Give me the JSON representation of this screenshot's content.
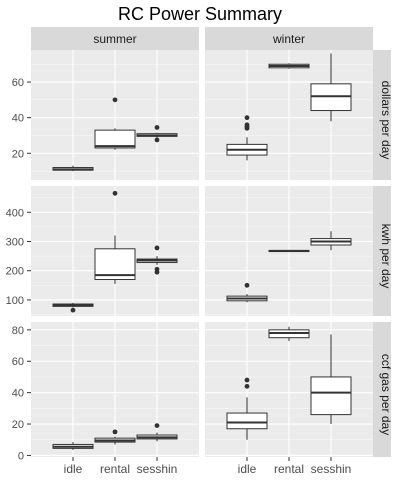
{
  "chart_data": {
    "type": "boxplot",
    "title": "RC Power Summary",
    "facet_columns": [
      "summer",
      "winter"
    ],
    "facet_rows": [
      "dollars per day",
      "kwh per day",
      "ccf gas per day"
    ],
    "categories": [
      "idle",
      "rental",
      "sesshin"
    ],
    "panel_background": "#ebebeb",
    "strip_background": "#d9d9d9",
    "grid_color": "#ffffff",
    "panels": [
      {
        "row": 0,
        "y_ticks": [
          20,
          40,
          60
        ],
        "y_range": [
          5,
          78
        ],
        "boxes": [
          [
            {
              "category": "idle",
              "min": 10,
              "q1": 10.5,
              "median": 11,
              "q3": 12,
              "max": 13,
              "outliers": []
            },
            {
              "category": "rental",
              "min": 22,
              "q1": 23,
              "median": 24,
              "q3": 33,
              "max": 34,
              "outliers": [
                50
              ]
            },
            {
              "category": "sesshin",
              "min": 28.5,
              "q1": 29.5,
              "median": 30,
              "q3": 31,
              "max": 31.5,
              "outliers": [
                27.5,
                34.5
              ]
            }
          ],
          [
            {
              "category": "idle",
              "min": 16,
              "q1": 19,
              "median": 22,
              "q3": 25,
              "max": 29,
              "outliers": [
                34,
                35,
                36,
                40
              ]
            },
            {
              "category": "rental",
              "min": 67.5,
              "q1": 68,
              "median": 69,
              "q3": 70,
              "max": 70.5,
              "outliers": []
            },
            {
              "category": "sesshin",
              "min": 38,
              "q1": 44,
              "median": 52,
              "q3": 59,
              "max": 76,
              "outliers": []
            }
          ]
        ]
      },
      {
        "row": 1,
        "y_ticks": [
          100,
          200,
          300,
          400
        ],
        "y_range": [
          45,
          490
        ],
        "boxes": [
          [
            {
              "category": "idle",
              "min": 75,
              "q1": 78,
              "median": 82,
              "q3": 86,
              "max": 90,
              "outliers": [
                65
              ]
            },
            {
              "category": "rental",
              "min": 155,
              "q1": 170,
              "median": 185,
              "q3": 275,
              "max": 320,
              "outliers": [
                465
              ]
            },
            {
              "category": "sesshin",
              "min": 220,
              "q1": 228,
              "median": 235,
              "q3": 240,
              "max": 250,
              "outliers": [
                195,
                205,
                278
              ]
            }
          ],
          [
            {
              "category": "idle",
              "min": 92,
              "q1": 97,
              "median": 105,
              "q3": 113,
              "max": 120,
              "outliers": [
                150
              ]
            },
            {
              "category": "rental",
              "min": 265,
              "q1": 266,
              "median": 268,
              "q3": 269,
              "max": 270,
              "outliers": []
            },
            {
              "category": "sesshin",
              "min": 270,
              "q1": 288,
              "median": 300,
              "q3": 310,
              "max": 335,
              "outliers": []
            }
          ]
        ]
      },
      {
        "row": 2,
        "y_ticks": [
          0,
          20,
          40,
          60,
          80
        ],
        "y_range": [
          -1,
          85
        ],
        "boxes": [
          [
            {
              "category": "idle",
              "min": 3.5,
              "q1": 4.5,
              "median": 5.5,
              "q3": 7,
              "max": 8.5,
              "outliers": []
            },
            {
              "category": "rental",
              "min": 7,
              "q1": 8.5,
              "median": 9.5,
              "q3": 11,
              "max": 12,
              "outliers": [
                15
              ]
            },
            {
              "category": "sesshin",
              "min": 9,
              "q1": 10.5,
              "median": 11.5,
              "q3": 13,
              "max": 14.5,
              "outliers": [
                19
              ]
            }
          ],
          [
            {
              "category": "idle",
              "min": 10,
              "q1": 17,
              "median": 21,
              "q3": 27,
              "max": 37,
              "outliers": [
                44,
                48
              ]
            },
            {
              "category": "rental",
              "min": 73,
              "q1": 75,
              "median": 78,
              "q3": 80,
              "max": 82,
              "outliers": []
            },
            {
              "category": "sesshin",
              "min": 20,
              "q1": 26,
              "median": 40,
              "q3": 50,
              "max": 77,
              "outliers": []
            }
          ]
        ]
      }
    ]
  }
}
